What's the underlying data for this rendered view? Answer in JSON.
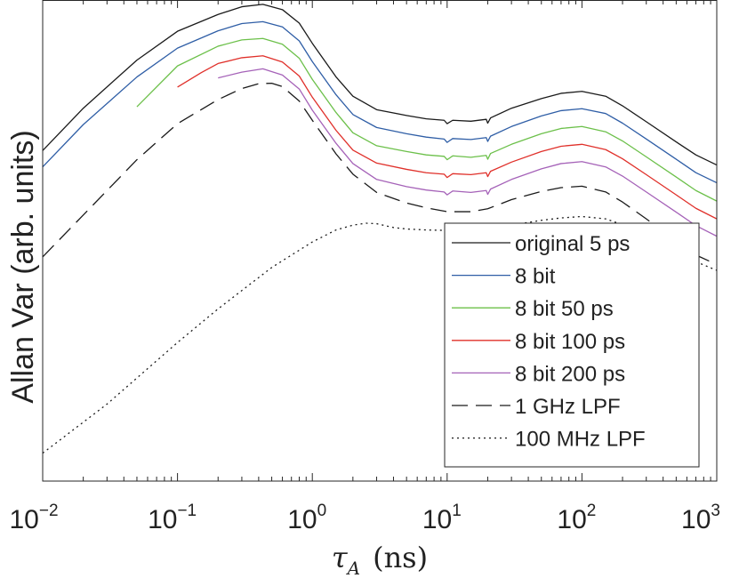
{
  "chart_data": {
    "type": "line",
    "title": "",
    "xlabel": "τ_A (ns)",
    "xlabel_var": "τ",
    "xlabel_sub": "A",
    "xlabel_unit": "(ns)",
    "ylabel": "Allan Var (arb. units)",
    "xscale": "log",
    "xlim": [
      0.01,
      1000
    ],
    "ylim": [
      0,
      1
    ],
    "y_ticks_labeled": false,
    "grid": false,
    "legend_position": "bottom-right",
    "x_ticks": [
      {
        "base": "10",
        "exp": "−2",
        "value": 0.01
      },
      {
        "base": "10",
        "exp": "−1",
        "value": 0.1
      },
      {
        "base": "10",
        "exp": "0",
        "value": 1
      },
      {
        "base": "10",
        "exp": "1",
        "value": 10
      },
      {
        "base": "10",
        "exp": "2",
        "value": 100
      },
      {
        "base": "10",
        "exp": "3",
        "value": 1000
      }
    ],
    "series": [
      {
        "name": "original 5 ps",
        "color": "#1a1a1a",
        "dash": "solid",
        "x": [
          0.01,
          0.02,
          0.05,
          0.1,
          0.2,
          0.3,
          0.43,
          0.6,
          0.8,
          1,
          1.5,
          2,
          3,
          5,
          7,
          9.5,
          10,
          11,
          15,
          19.5,
          20,
          21,
          30,
          50,
          70,
          100,
          150,
          200,
          300,
          500,
          700,
          1000
        ],
        "y": [
          0.687,
          0.775,
          0.875,
          0.935,
          0.97,
          0.986,
          0.991,
          0.98,
          0.952,
          0.91,
          0.84,
          0.8,
          0.772,
          0.76,
          0.753,
          0.75,
          0.743,
          0.75,
          0.748,
          0.752,
          0.744,
          0.755,
          0.775,
          0.795,
          0.806,
          0.81,
          0.8,
          0.78,
          0.747,
          0.705,
          0.678,
          0.657
        ]
      },
      {
        "name": "8 bit",
        "color": "#2f5ea6",
        "dash": "solid",
        "x": [
          0.01,
          0.02,
          0.05,
          0.1,
          0.2,
          0.3,
          0.43,
          0.6,
          0.8,
          1,
          1.5,
          2,
          3,
          5,
          7,
          9.5,
          10,
          11,
          15,
          19.5,
          20,
          21,
          30,
          50,
          70,
          100,
          150,
          200,
          300,
          500,
          700,
          1000
        ],
        "y": [
          0.653,
          0.741,
          0.84,
          0.9,
          0.936,
          0.951,
          0.955,
          0.944,
          0.915,
          0.872,
          0.803,
          0.762,
          0.735,
          0.722,
          0.715,
          0.711,
          0.704,
          0.712,
          0.71,
          0.714,
          0.706,
          0.717,
          0.737,
          0.759,
          0.77,
          0.774,
          0.764,
          0.744,
          0.711,
          0.669,
          0.641,
          0.62
        ]
      },
      {
        "name": "8 bit 50 ps",
        "color": "#6cc04a",
        "dash": "solid",
        "x": [
          0.05,
          0.1,
          0.2,
          0.3,
          0.43,
          0.6,
          0.8,
          1,
          1.5,
          2,
          3,
          5,
          7,
          9.5,
          10,
          11,
          15,
          19.5,
          20,
          21,
          30,
          50,
          70,
          100,
          150,
          200,
          300,
          500,
          700,
          1000
        ],
        "y": [
          0.778,
          0.863,
          0.904,
          0.917,
          0.92,
          0.908,
          0.879,
          0.835,
          0.766,
          0.724,
          0.697,
          0.685,
          0.678,
          0.675,
          0.668,
          0.676,
          0.673,
          0.677,
          0.669,
          0.681,
          0.7,
          0.722,
          0.733,
          0.737,
          0.726,
          0.707,
          0.674,
          0.632,
          0.604,
          0.582
        ]
      },
      {
        "name": "8 bit 100 ps",
        "color": "#e0302a",
        "dash": "solid",
        "x": [
          0.1,
          0.15,
          0.2,
          0.3,
          0.43,
          0.6,
          0.8,
          1,
          1.5,
          2,
          3,
          5,
          7,
          9.5,
          10,
          11,
          15,
          19.5,
          20,
          21,
          30,
          50,
          70,
          100,
          150,
          200,
          300,
          500,
          700,
          1000
        ],
        "y": [
          0.819,
          0.849,
          0.868,
          0.88,
          0.884,
          0.871,
          0.842,
          0.798,
          0.729,
          0.688,
          0.661,
          0.648,
          0.641,
          0.638,
          0.631,
          0.639,
          0.637,
          0.641,
          0.633,
          0.644,
          0.663,
          0.685,
          0.696,
          0.7,
          0.689,
          0.67,
          0.637,
          0.595,
          0.567,
          0.545
        ]
      },
      {
        "name": "8 bit 200 ps",
        "color": "#a562b8",
        "dash": "solid",
        "x": [
          0.2,
          0.3,
          0.43,
          0.6,
          0.8,
          1,
          1.5,
          2,
          3,
          5,
          7,
          9.5,
          10,
          11,
          15,
          19.5,
          20,
          21,
          30,
          50,
          70,
          100,
          150,
          200,
          300,
          500,
          700,
          1000
        ],
        "y": [
          0.838,
          0.85,
          0.857,
          0.844,
          0.815,
          0.771,
          0.702,
          0.66,
          0.627,
          0.612,
          0.605,
          0.601,
          0.595,
          0.603,
          0.6,
          0.604,
          0.596,
          0.607,
          0.627,
          0.649,
          0.66,
          0.664,
          0.653,
          0.634,
          0.601,
          0.559,
          0.531,
          0.509
        ]
      },
      {
        "name": "1 GHz LPF",
        "color": "#1a1a1a",
        "dash": "dashed",
        "x": [
          0.01,
          0.02,
          0.05,
          0.1,
          0.2,
          0.3,
          0.4,
          0.5,
          0.6,
          0.8,
          1,
          1.5,
          2,
          3,
          5,
          7,
          10,
          15,
          20,
          30,
          50,
          70,
          100,
          150,
          200,
          300,
          500,
          700,
          1000
        ],
        "y": [
          0.466,
          0.553,
          0.668,
          0.743,
          0.793,
          0.816,
          0.826,
          0.827,
          0.82,
          0.79,
          0.75,
          0.68,
          0.638,
          0.6,
          0.578,
          0.568,
          0.56,
          0.56,
          0.566,
          0.585,
          0.602,
          0.61,
          0.613,
          0.601,
          0.58,
          0.545,
          0.5,
          0.47,
          0.45
        ]
      },
      {
        "name": "100 MHz LPF",
        "color": "#1a1a1a",
        "dash": "dotted",
        "x": [
          0.01,
          0.03,
          0.1,
          0.2,
          0.5,
          1,
          1.5,
          2,
          2.5,
          3,
          4,
          5,
          7,
          10,
          15,
          20,
          30,
          50,
          70,
          100,
          150,
          200,
          300,
          500,
          700,
          1000
        ],
        "y": [
          0.058,
          0.16,
          0.288,
          0.358,
          0.444,
          0.497,
          0.522,
          0.532,
          0.536,
          0.535,
          0.527,
          0.524,
          0.522,
          0.521,
          0.522,
          0.525,
          0.532,
          0.542,
          0.547,
          0.55,
          0.545,
          0.533,
          0.51,
          0.478,
          0.456,
          0.438
        ]
      }
    ]
  }
}
